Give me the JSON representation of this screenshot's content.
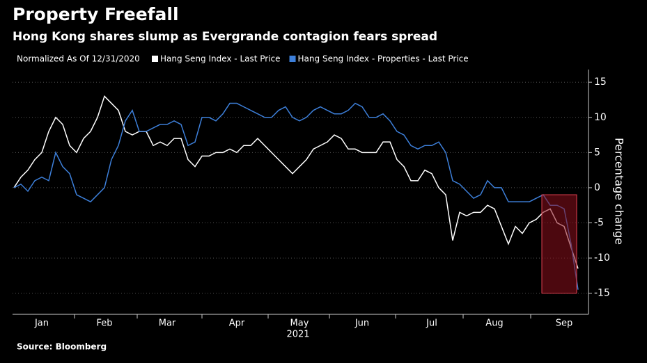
{
  "chart_data": {
    "type": "line",
    "title": "Property Freefall",
    "subtitle": "Hong Kong shares slump as Evergrande contagion fears spread",
    "note": "Normalized As Of 12/31/2020",
    "ylabel": "Percentage change",
    "xlabel": "2021",
    "source": "Source: Bloomberg",
    "categories": [
      null,
      null,
      null,
      null,
      "Jan",
      null,
      null,
      null,
      null,
      null,
      null,
      null,
      null,
      "Feb",
      null,
      null,
      null,
      null,
      null,
      null,
      null,
      null,
      "Mar",
      null,
      null,
      null,
      null,
      null,
      null,
      null,
      null,
      null,
      "Apr",
      null,
      null,
      null,
      null,
      null,
      null,
      null,
      null,
      "May",
      null,
      null,
      null,
      null,
      null,
      null,
      null,
      null,
      "Jun",
      null,
      null,
      null,
      null,
      null,
      null,
      null,
      null,
      null,
      "Jul",
      null,
      null,
      null,
      null,
      null,
      null,
      null,
      null,
      "Aug",
      null,
      null,
      null,
      null,
      null,
      null,
      null,
      null,
      null,
      "Sep",
      null,
      null
    ],
    "series": [
      {
        "name": "Hang Seng Index - Last Price",
        "color": "#ffffff",
        "values": [
          0,
          1.5,
          2.5,
          4,
          5,
          8,
          10,
          9,
          6,
          5,
          7,
          8,
          10,
          13,
          12,
          11,
          8,
          7.5,
          8,
          8,
          6,
          6.5,
          6,
          7,
          7,
          4,
          3,
          4.5,
          4.5,
          5,
          5,
          5.5,
          5,
          6,
          6,
          7,
          6,
          5,
          4,
          3,
          2,
          3,
          4,
          5.5,
          6,
          6.5,
          7.5,
          7,
          5.5,
          5.5,
          5,
          5,
          5,
          6.5,
          6.5,
          4,
          3,
          1,
          1,
          2.5,
          2,
          0,
          -1,
          -7.5,
          -3.5,
          -4,
          -3.5,
          -3.5,
          -2.5,
          -3,
          -5.5,
          -8,
          -5.5,
          -6.5,
          -5,
          -4.5,
          -3.5,
          -3,
          -5,
          -5.5,
          -8.5,
          -11.5
        ]
      },
      {
        "name": "Hang Seng Index - Properties - Last Price",
        "color": "#3d7fd9",
        "values": [
          0,
          0.5,
          -0.5,
          1,
          1.5,
          1,
          5,
          3,
          2,
          -1,
          -1.5,
          -2,
          -1,
          0,
          4,
          6,
          9.5,
          11,
          8,
          8,
          8.5,
          9,
          9,
          9.5,
          9,
          6,
          6.5,
          10,
          10,
          9.5,
          10.5,
          12,
          12,
          11.5,
          11,
          10.5,
          10,
          10,
          11,
          11.5,
          10,
          9.5,
          10,
          11,
          11.5,
          11,
          10.5,
          10.5,
          11,
          12,
          11.5,
          10,
          10,
          10.5,
          9.5,
          8,
          7.5,
          6,
          5.5,
          6,
          6,
          6.5,
          5,
          1,
          0.5,
          -0.5,
          -1.5,
          -1,
          1,
          0,
          0,
          -2,
          -2,
          -2,
          -2,
          -1.5,
          -1,
          -2.5,
          -2.5,
          -3,
          -8,
          -14.5
        ]
      }
    ],
    "highlight": {
      "x": [
        76,
        81
      ],
      "y": [
        -15,
        -1
      ],
      "color": "#8b0f1c"
    },
    "ylim": [
      -18,
      16.8
    ],
    "yticks": [
      -15,
      -10,
      -5,
      0,
      5,
      10,
      15
    ],
    "grid": true
  }
}
